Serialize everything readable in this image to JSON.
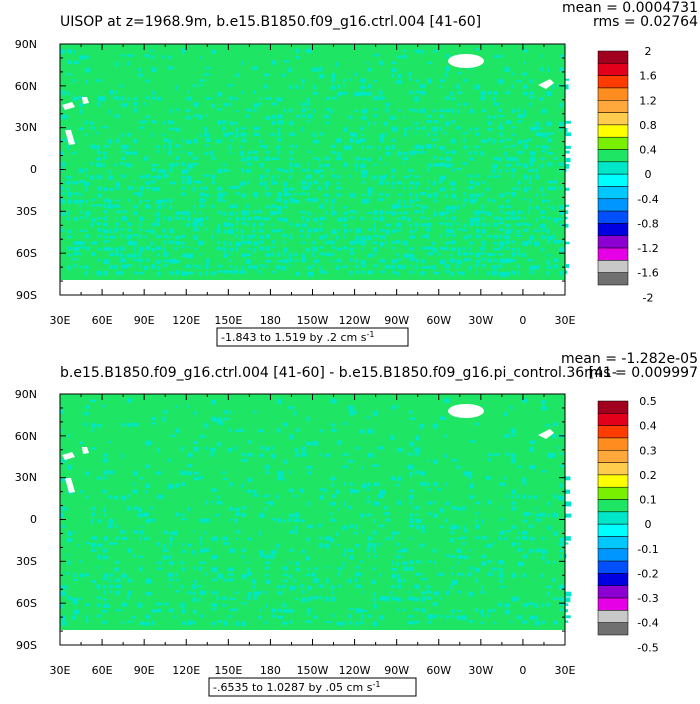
{
  "panels": [
    {
      "title": "UISOP at z=1968.9m, b.e15.B1850.f09_g16.ctrl.004 [41-60]",
      "mean_text": "mean = 0.0004731",
      "rms_text": "rms = 0.02764",
      "range_text": "-1.843 to 1.519 by .2 cm s",
      "range_unit_sup": "-1",
      "colorbar_labels": [
        "2",
        "1.6",
        "1.2",
        "0.8",
        "0.4",
        "0",
        "-0.4",
        "-0.8",
        "-1.2",
        "-1.6",
        "-2"
      ],
      "colorbar_colors": [
        "#a0001e",
        "#e2001a",
        "#ff3c00",
        "#ff8c1e",
        "#ffa83c",
        "#ffcc4c",
        "#ffff00",
        "#78f000",
        "#1ee664",
        "#00e6c8",
        "#00ffff",
        "#00c8ff",
        "#0096ff",
        "#0050ff",
        "#0000e0",
        "#8c00d2",
        "#e600e6",
        "#c8c8c8",
        "#707070"
      ]
    },
    {
      "title": "b.e15.B1850.f09_g16.ctrl.004 [41-60] - b.e15.B1850.f09_g16.pi_control.36 [41-",
      "mean_text": "mean = -1.282e-05",
      "rms_text": "rms = 0.009997",
      "range_text": "-.6535 to 1.0287 by .05 cm s",
      "range_unit_sup": "-1",
      "colorbar_labels": [
        "0.5",
        "0.4",
        "0.3",
        "0.2",
        "0.1",
        "0",
        "-0.1",
        "-0.2",
        "-0.3",
        "-0.4",
        "-0.5"
      ],
      "colorbar_colors": [
        "#a0001e",
        "#e2001a",
        "#ff3c00",
        "#ff8c1e",
        "#ffa83c",
        "#ffcc4c",
        "#ffff00",
        "#78f000",
        "#1ee664",
        "#00e6c8",
        "#00ffff",
        "#00c8ff",
        "#0096ff",
        "#0050ff",
        "#0000e0",
        "#8c00d2",
        "#e600e6",
        "#c8c8c8",
        "#707070"
      ]
    }
  ],
  "lat_ticks": [
    "90N",
    "60N",
    "30N",
    "0",
    "30S",
    "60S",
    "90S"
  ],
  "lon_ticks": [
    "30E",
    "60E",
    "90E",
    "120E",
    "150E",
    "180",
    "150W",
    "120W",
    "90W",
    "60W",
    "30W",
    "0",
    "30E"
  ],
  "map_colors": {
    "base": "#1ee664",
    "anomaly": "#00e6c8",
    "land": "#ffffff",
    "border": "#000000"
  }
}
